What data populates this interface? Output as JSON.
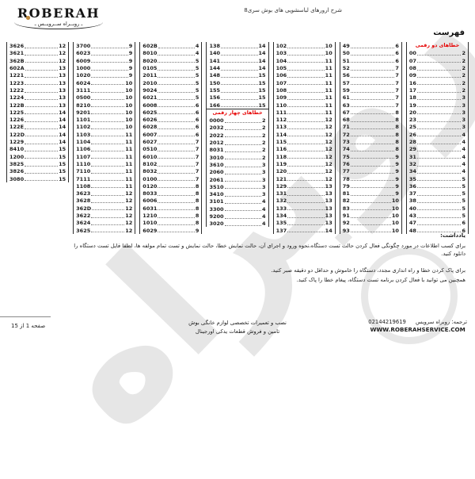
{
  "colors": {
    "accent_red": "#e60000",
    "logo_gold": "#c08a3e"
  },
  "header": {
    "logo": {
      "brand": "ROBERAH",
      "tagline": "ـ روبــراه ســرویــس ـ"
    },
    "title": "شرح ارورهای لباسشویی های بوش سری8"
  },
  "watermark": {
    "text": "روبراه"
  },
  "index": {
    "heading": "فهرست",
    "columns": [
      {
        "rows": [
          {
            "h": "خطاهای دو رقمی"
          },
          {
            "c": "00",
            "p": "2"
          },
          {
            "c": "07",
            "p": "2"
          },
          {
            "c": "08",
            "p": "2"
          },
          {
            "c": "09",
            "p": "2"
          },
          {
            "c": "16",
            "p": "2"
          },
          {
            "c": "17",
            "p": "2"
          },
          {
            "c": "18",
            "p": "3"
          },
          {
            "c": "19",
            "p": "3"
          },
          {
            "c": "20",
            "p": "3"
          },
          {
            "c": "23",
            "p": "3"
          },
          {
            "c": "25",
            "p": "3"
          },
          {
            "c": "26",
            "p": "4"
          },
          {
            "c": "28",
            "p": "4"
          },
          {
            "c": "29",
            "p": "4"
          },
          {
            "c": "31",
            "p": "4"
          },
          {
            "c": "32",
            "p": "4"
          },
          {
            "c": "34",
            "p": "4"
          },
          {
            "c": "35",
            "p": "5"
          },
          {
            "c": "36",
            "p": "5"
          },
          {
            "c": "37",
            "p": "5"
          },
          {
            "c": "38",
            "p": "5"
          },
          {
            "c": "40",
            "p": "5"
          },
          {
            "c": "43",
            "p": "5"
          },
          {
            "c": "47",
            "p": "6"
          },
          {
            "c": "48",
            "p": "6"
          }
        ]
      },
      {
        "rows": [
          {
            "c": "49",
            "p": "6"
          },
          {
            "c": "50",
            "p": "6"
          },
          {
            "c": "51",
            "p": "6"
          },
          {
            "c": "52",
            "p": "7"
          },
          {
            "c": "56",
            "p": "7"
          },
          {
            "c": "57",
            "p": "7"
          },
          {
            "c": "59",
            "p": "7"
          },
          {
            "c": "61",
            "p": "7"
          },
          {
            "c": "63",
            "p": "7"
          },
          {
            "c": "67",
            "p": "8"
          },
          {
            "c": "68",
            "p": "8"
          },
          {
            "c": "71",
            "p": "8"
          },
          {
            "c": "72",
            "p": "8"
          },
          {
            "c": "73",
            "p": "8"
          },
          {
            "c": "74",
            "p": "8"
          },
          {
            "c": "75",
            "p": "9"
          },
          {
            "c": "76",
            "p": "9"
          },
          {
            "c": "77",
            "p": "9"
          },
          {
            "c": "78",
            "p": "9"
          },
          {
            "c": "79",
            "p": "9"
          },
          {
            "c": "81",
            "p": "9"
          },
          {
            "c": "82",
            "p": "10"
          },
          {
            "c": "83",
            "p": "10"
          },
          {
            "c": "91",
            "p": "10"
          },
          {
            "c": "92",
            "p": "10"
          },
          {
            "c": "93",
            "p": "10"
          }
        ]
      },
      {
        "rows": [
          {
            "c": "102",
            "p": "10"
          },
          {
            "c": "103",
            "p": "10"
          },
          {
            "c": "104",
            "p": "11"
          },
          {
            "c": "105",
            "p": "11"
          },
          {
            "c": "106",
            "p": "11"
          },
          {
            "c": "107",
            "p": "11"
          },
          {
            "c": "108",
            "p": "11"
          },
          {
            "c": "109",
            "p": "11"
          },
          {
            "c": "110",
            "p": "11"
          },
          {
            "c": "111",
            "p": "11"
          },
          {
            "c": "112",
            "p": "12"
          },
          {
            "c": "113",
            "p": "12"
          },
          {
            "c": "114",
            "p": "12"
          },
          {
            "c": "115",
            "p": "12"
          },
          {
            "c": "116",
            "p": "12"
          },
          {
            "c": "118",
            "p": "12"
          },
          {
            "c": "119",
            "p": "12"
          },
          {
            "c": "120",
            "p": "12"
          },
          {
            "c": "121",
            "p": "12"
          },
          {
            "c": "129",
            "p": "13"
          },
          {
            "c": "131",
            "p": "13"
          },
          {
            "c": "132",
            "p": "13"
          },
          {
            "c": "133",
            "p": "13"
          },
          {
            "c": "134",
            "p": "13"
          },
          {
            "c": "135",
            "p": "13"
          },
          {
            "c": "137",
            "p": "14"
          }
        ]
      },
      {
        "rows": [
          {
            "c": "138",
            "p": "14"
          },
          {
            "c": "140",
            "p": "14"
          },
          {
            "c": "141",
            "p": "14"
          },
          {
            "c": "144",
            "p": "14"
          },
          {
            "c": "148",
            "p": "15"
          },
          {
            "c": "150",
            "p": "15"
          },
          {
            "c": "155",
            "p": "15"
          },
          {
            "c": "156",
            "p": "15"
          },
          {
            "c": "166",
            "p": "15"
          },
          {
            "h": "خطاهای چهار رقمی",
            "mid": true
          },
          {
            "c": "0000",
            "p": "2"
          },
          {
            "c": "2032",
            "p": "2"
          },
          {
            "c": "2022",
            "p": "2"
          },
          {
            "c": "2012",
            "p": "2"
          },
          {
            "c": "8031",
            "p": "2"
          },
          {
            "c": "3010",
            "p": "2"
          },
          {
            "c": "3610",
            "p": "3"
          },
          {
            "c": "2060",
            "p": "3"
          },
          {
            "c": "2061",
            "p": "3"
          },
          {
            "c": "3510",
            "p": "3"
          },
          {
            "c": "3410",
            "p": "3"
          },
          {
            "c": "3101",
            "p": "4"
          },
          {
            "c": "3300",
            "p": "4"
          },
          {
            "c": "9200",
            "p": "4"
          },
          {
            "c": "3020",
            "p": "4"
          }
        ]
      },
      {
        "rows": [
          {
            "c": "602B",
            "p": "4"
          },
          {
            "c": "8010",
            "p": "4"
          },
          {
            "c": "8020",
            "p": "5"
          },
          {
            "c": "0105",
            "p": "5"
          },
          {
            "c": "2011",
            "p": "5"
          },
          {
            "c": "2010",
            "p": "5"
          },
          {
            "c": "9024",
            "p": "5"
          },
          {
            "c": "6021",
            "p": "5"
          },
          {
            "c": "6008",
            "p": "6"
          },
          {
            "c": "6025",
            "p": "6"
          },
          {
            "c": "6026",
            "p": "6"
          },
          {
            "c": "6028",
            "p": "6"
          },
          {
            "c": "6007",
            "p": "6"
          },
          {
            "c": "6027",
            "p": "7"
          },
          {
            "c": "0510",
            "p": "7"
          },
          {
            "c": "6010",
            "p": "7"
          },
          {
            "c": "8102",
            "p": "7"
          },
          {
            "c": "8032",
            "p": "7"
          },
          {
            "c": "0100",
            "p": "7"
          },
          {
            "c": "0120",
            "p": "8"
          },
          {
            "c": "8033",
            "p": "8"
          },
          {
            "c": "6006",
            "p": "8"
          },
          {
            "c": "6031",
            "p": "8"
          },
          {
            "c": "1210",
            "p": "8"
          },
          {
            "c": "1010",
            "p": "8"
          },
          {
            "c": "6029",
            "p": "9"
          }
        ]
      },
      {
        "rows": [
          {
            "c": "3700",
            "p": "9"
          },
          {
            "c": "6023",
            "p": "9"
          },
          {
            "c": "6009",
            "p": "9"
          },
          {
            "c": "1000",
            "p": "9"
          },
          {
            "c": "1020",
            "p": "9"
          },
          {
            "c": "6024",
            "p": "10"
          },
          {
            "c": "3111",
            "p": "10"
          },
          {
            "c": "0500",
            "p": "10"
          },
          {
            "c": "8210",
            "p": "10"
          },
          {
            "c": "9201",
            "p": "10"
          },
          {
            "c": "1101",
            "p": "10"
          },
          {
            "c": "1102",
            "p": "10"
          },
          {
            "c": "1103",
            "p": "11"
          },
          {
            "c": "1104",
            "p": "11"
          },
          {
            "c": "1106",
            "p": "11"
          },
          {
            "c": "1107",
            "p": "11"
          },
          {
            "c": "1110",
            "p": "11"
          },
          {
            "c": "7110",
            "p": "11"
          },
          {
            "c": "7111",
            "p": "11"
          },
          {
            "c": "1108",
            "p": "11"
          },
          {
            "c": "3623",
            "p": "12"
          },
          {
            "c": "3628",
            "p": "12"
          },
          {
            "c": "362D",
            "p": "12"
          },
          {
            "c": "3622",
            "p": "12"
          },
          {
            "c": "3624",
            "p": "12"
          },
          {
            "c": "3625",
            "p": "12"
          }
        ]
      },
      {
        "rows": [
          {
            "c": "3626",
            "p": "12"
          },
          {
            "c": "3621",
            "p": "12"
          },
          {
            "c": "362B",
            "p": "12"
          },
          {
            "c": "602A",
            "p": "13"
          },
          {
            "c": "1221",
            "p": "13"
          },
          {
            "c": "1223",
            "p": "13"
          },
          {
            "c": "1222",
            "p": "13"
          },
          {
            "c": "1224",
            "p": "13"
          },
          {
            "c": "122B",
            "p": "13"
          },
          {
            "c": "1225",
            "p": "14"
          },
          {
            "c": "1226",
            "p": "14"
          },
          {
            "c": "122E",
            "p": "14"
          },
          {
            "c": "122D",
            "p": "14"
          },
          {
            "c": "1229",
            "p": "14"
          },
          {
            "c": "8410",
            "p": "15"
          },
          {
            "c": "1200",
            "p": "15"
          },
          {
            "c": "3825",
            "p": "15"
          },
          {
            "c": "3826",
            "p": "15"
          },
          {
            "c": "3080",
            "p": "15"
          }
        ]
      }
    ]
  },
  "notes": {
    "label": "یادداشت:",
    "line1": "برای کسب اطلاعات در مورد چگونگی فعال کردن حالت تست دستگاه،نحوه ورود و اجرای آن، حالت نمایش خطا، حالت نمایش و تست تمام مولفه ها، لطفا فایل تست دستگاه را دانلود کنید.",
    "line2": "برای پاک کردن خطا و راه اندازی مجدد، دستگاه را خاموش و حداقل دو دقیقه صبر کنید.",
    "line3": "همچنین می توانید با فعال کردن برنامه تست دستگاه، پیغام خطا را پاک کنید."
  },
  "footer": {
    "translation": "ترجمه: روبراه سرویس",
    "phone": "02144219619",
    "website": "WWW.ROBERAHSERVICE.COM",
    "center_line1": "نصب و تعمیرات تخصصی لوازم خانگی بوش",
    "center_line2": "تامین و فروش قطعات یدکی اورجینال",
    "page_label": "صفحه 1 از 15"
  }
}
